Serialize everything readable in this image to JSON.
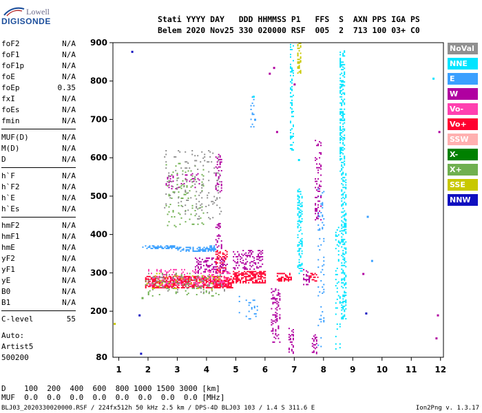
{
  "brand": {
    "line1": "Lowell",
    "line2": "DIGISONDE"
  },
  "header": {
    "labels": "Stati YYYY DAY   DDD HHMMSS P1   FFS  S  AXN PPS IGA PS",
    "values": "Belem 2020 Nov25 330 020000 RSF  005  2  713 100 03+ C0"
  },
  "params": [
    {
      "label": "foF2",
      "value": "N/A"
    },
    {
      "label": "foF1",
      "value": "N/A"
    },
    {
      "label": "foF1p",
      "value": "N/A"
    },
    {
      "label": "foE",
      "value": "N/A"
    },
    {
      "label": "foEp",
      "value": "0.35"
    },
    {
      "label": "fxI",
      "value": "N/A"
    },
    {
      "label": "foEs",
      "value": "N/A"
    },
    {
      "label": "fmin",
      "value": "N/A"
    },
    {
      "label": "MUF(D)",
      "value": "N/A"
    },
    {
      "label": "M(D)",
      "value": "N/A"
    },
    {
      "label": "D",
      "value": "N/A"
    },
    {
      "label": "h`F",
      "value": "N/A"
    },
    {
      "label": "h`F2",
      "value": "N/A"
    },
    {
      "label": "h`E",
      "value": "N/A"
    },
    {
      "label": "h`Es",
      "value": "N/A"
    },
    {
      "label": "hmF2",
      "value": "N/A"
    },
    {
      "label": "hmF1",
      "value": "N/A"
    },
    {
      "label": "hmE",
      "value": "N/A"
    },
    {
      "label": "yF2",
      "value": "N/A"
    },
    {
      "label": "yF1",
      "value": "N/A"
    },
    {
      "label": "yE",
      "value": "N/A"
    },
    {
      "label": "B0",
      "value": "N/A"
    },
    {
      "label": "B1",
      "value": "N/A"
    },
    {
      "label": "C-level",
      "value": "55"
    }
  ],
  "auto": {
    "line1": "Auto:",
    "line2": "Artist5",
    "line3": "500200"
  },
  "legend": [
    {
      "label": "NoVal",
      "color": "#909090"
    },
    {
      "label": "NNE",
      "color": "#00e4ff"
    },
    {
      "label": "E",
      "color": "#3aa0ff"
    },
    {
      "label": "W",
      "color": "#b000a0"
    },
    {
      "label": "Vo-",
      "color": "#ff40b0"
    },
    {
      "label": "Vo+",
      "color": "#ff0030"
    },
    {
      "label": "SSW",
      "color": "#ffb0b0"
    },
    {
      "label": "X-",
      "color": "#008000"
    },
    {
      "label": "X+",
      "color": "#70b050"
    },
    {
      "label": "SSE",
      "color": "#c8c800"
    },
    {
      "label": "NNW",
      "color": "#1010c0"
    }
  ],
  "dm": {
    "d_row": "D    100  200  400  600  800 1000 1500 3000 [km]",
    "muf_row": "MUF  0.0  0.0  0.0  0.0  0.0  0.0  0.0  0.0 [MHz]"
  },
  "footer": {
    "left": "BLJ03_2020330020000.RSF / 224fx512h 50 kHz 2.5 km / DPS-4D BLJ03 103 / 1.4 S 311.6 E",
    "right": "Ion2Png v. 1.3.17"
  },
  "chart_data": {
    "type": "scatter",
    "x_ticks": [
      1,
      2,
      3,
      4,
      5,
      6,
      7,
      8,
      9,
      10,
      11,
      12
    ],
    "y_ticks": [
      200,
      300,
      400,
      500,
      600,
      700,
      800,
      900
    ],
    "xlim": [
      0.8,
      12.1
    ],
    "ylim": [
      80,
      900
    ],
    "grid": false,
    "legend_position": "right",
    "clusters": [
      {
        "series": "E",
        "x0": 1.8,
        "x1": 3.0,
        "y0": 365,
        "y1": 372,
        "density": 0.55
      },
      {
        "series": "E",
        "x0": 3.0,
        "x1": 4.3,
        "y0": 358,
        "y1": 368,
        "density": 0.55
      },
      {
        "series": "E",
        "x0": 4.1,
        "x1": 4.3,
        "y0": 360,
        "y1": 372,
        "density": 0.6
      },
      {
        "series": "Vo+",
        "x0": 1.9,
        "x1": 4.9,
        "y0": 262,
        "y1": 292,
        "density": 0.65
      },
      {
        "series": "Vo+",
        "x0": 4.9,
        "x1": 6.0,
        "y0": 275,
        "y1": 305,
        "density": 0.6
      },
      {
        "series": "Vo+",
        "x0": 6.4,
        "x1": 6.9,
        "y0": 280,
        "y1": 300,
        "density": 0.5
      },
      {
        "series": "Vo+",
        "x0": 7.5,
        "x1": 7.8,
        "y0": 280,
        "y1": 300,
        "density": 0.4
      },
      {
        "series": "Vo+",
        "x0": 4.3,
        "x1": 4.7,
        "y0": 300,
        "y1": 360,
        "density": 0.35
      },
      {
        "series": "Vo-",
        "x0": 2.0,
        "x1": 4.8,
        "y0": 268,
        "y1": 310,
        "density": 0.18
      },
      {
        "series": "W",
        "x0": 3.6,
        "x1": 4.7,
        "y0": 300,
        "y1": 340,
        "density": 0.3
      },
      {
        "series": "W",
        "x0": 4.9,
        "x1": 5.9,
        "y0": 310,
        "y1": 360,
        "density": 0.3
      },
      {
        "series": "W",
        "x0": 4.3,
        "x1": 4.5,
        "y0": 360,
        "y1": 430,
        "density": 0.3
      },
      {
        "series": "W",
        "x0": 2.6,
        "x1": 3.8,
        "y0": 520,
        "y1": 560,
        "density": 0.12
      },
      {
        "series": "W",
        "x0": 4.3,
        "x1": 4.5,
        "y0": 510,
        "y1": 610,
        "density": 0.25
      },
      {
        "series": "X+",
        "x0": 1.9,
        "x1": 4.4,
        "y0": 240,
        "y1": 300,
        "density": 0.06
      },
      {
        "series": "X+",
        "x0": 2.6,
        "x1": 3.9,
        "y0": 420,
        "y1": 590,
        "density": 0.05
      },
      {
        "series": "NoVal",
        "x0": 2.0,
        "x1": 4.6,
        "y0": 250,
        "y1": 300,
        "density": 0.07
      },
      {
        "series": "NoVal",
        "x0": 2.5,
        "x1": 4.5,
        "y0": 440,
        "y1": 620,
        "density": 0.05
      },
      {
        "series": "SSE",
        "x0": 1.9,
        "x1": 4.4,
        "y0": 255,
        "y1": 300,
        "density": 0.05
      },
      {
        "series": "NNE",
        "x0": 6.85,
        "x1": 6.95,
        "y0": 620,
        "y1": 900,
        "density": 0.25
      },
      {
        "series": "NNE",
        "x0": 7.1,
        "x1": 7.25,
        "y0": 300,
        "y1": 520,
        "density": 0.35
      },
      {
        "series": "NNE",
        "x0": 8.55,
        "x1": 8.7,
        "y0": 560,
        "y1": 880,
        "density": 0.35
      },
      {
        "series": "NNE",
        "x0": 8.6,
        "x1": 8.75,
        "y0": 180,
        "y1": 560,
        "density": 0.35
      },
      {
        "series": "NNE",
        "x0": 8.4,
        "x1": 8.55,
        "y0": 100,
        "y1": 420,
        "density": 0.12
      },
      {
        "series": "E",
        "x0": 5.5,
        "x1": 5.6,
        "y0": 680,
        "y1": 760,
        "density": 0.2
      },
      {
        "series": "E",
        "x0": 5.1,
        "x1": 5.8,
        "y0": 180,
        "y1": 240,
        "density": 0.06
      },
      {
        "series": "E",
        "x0": 7.8,
        "x1": 8.0,
        "y0": 100,
        "y1": 520,
        "density": 0.08
      },
      {
        "series": "W",
        "x0": 6.2,
        "x1": 6.5,
        "y0": 120,
        "y1": 260,
        "density": 0.25
      },
      {
        "series": "W",
        "x0": 7.7,
        "x1": 7.9,
        "y0": 440,
        "y1": 650,
        "density": 0.2
      },
      {
        "series": "W",
        "x0": 6.8,
        "x1": 6.95,
        "y0": 90,
        "y1": 160,
        "density": 0.25
      },
      {
        "series": "W",
        "x0": 7.6,
        "x1": 7.75,
        "y0": 90,
        "y1": 140,
        "density": 0.3
      },
      {
        "series": "W",
        "x0": 7.3,
        "x1": 7.5,
        "y0": 270,
        "y1": 310,
        "density": 0.3
      },
      {
        "series": "SSE",
        "x0": 7.1,
        "x1": 7.2,
        "y0": 820,
        "y1": 900,
        "density": 0.35
      },
      {
        "series": "NNW",
        "x0": 9.3,
        "x1": 9.4,
        "y0": 295,
        "y1": 305,
        "density": 0.2
      }
    ],
    "points": [
      {
        "series": "NNW",
        "x": 1.45,
        "y": 877
      },
      {
        "series": "NNW",
        "x": 1.7,
        "y": 190
      },
      {
        "series": "NNW",
        "x": 1.75,
        "y": 90
      },
      {
        "series": "NNW",
        "x": 9.45,
        "y": 195
      },
      {
        "series": "W",
        "x": 6.15,
        "y": 820
      },
      {
        "series": "W",
        "x": 6.3,
        "y": 835
      },
      {
        "series": "W",
        "x": 7.0,
        "y": 792
      },
      {
        "series": "W",
        "x": 6.4,
        "y": 668
      },
      {
        "series": "W",
        "x": 11.95,
        "y": 668
      },
      {
        "series": "W",
        "x": 11.9,
        "y": 190
      },
      {
        "series": "W",
        "x": 11.85,
        "y": 130
      },
      {
        "series": "W",
        "x": 9.35,
        "y": 298
      },
      {
        "series": "NNE",
        "x": 11.75,
        "y": 807
      },
      {
        "series": "NNE",
        "x": 7.15,
        "y": 595
      },
      {
        "series": "NNE",
        "x": 5.6,
        "y": 760
      },
      {
        "series": "E",
        "x": 9.5,
        "y": 447
      },
      {
        "series": "E",
        "x": 9.65,
        "y": 332
      },
      {
        "series": "E",
        "x": 5.65,
        "y": 700
      },
      {
        "series": "SSE",
        "x": 0.85,
        "y": 168
      },
      {
        "series": "X+",
        "x": 1.8,
        "y": 235
      }
    ]
  }
}
